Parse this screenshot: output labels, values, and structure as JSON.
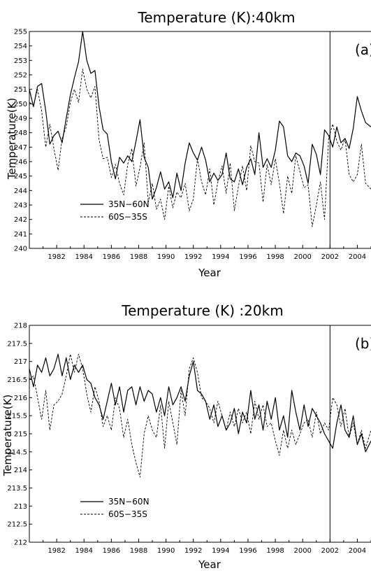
{
  "chart_data": [
    {
      "type": "line",
      "title": "Temperature (K):40km",
      "panel_label": "(a)",
      "xlabel": "Year",
      "ylabel": "Temperature(K)",
      "xlim": [
        1980.0,
        2005.0
      ],
      "ylim": [
        240,
        255
      ],
      "xticks": [
        1982,
        1984,
        1986,
        1988,
        1990,
        1992,
        1994,
        1996,
        1998,
        2000,
        2002,
        2004
      ],
      "yticks": [
        240,
        241,
        242,
        243,
        244,
        245,
        246,
        247,
        248,
        249,
        250,
        251,
        252,
        253,
        254,
        255
      ],
      "vline": 2002,
      "legend_position": "bottom-left",
      "series": [
        {
          "name": "35N−60N",
          "style": "solid",
          "x": [
            1980.0,
            1980.3,
            1980.6,
            1980.9,
            1981.2,
            1981.5,
            1981.8,
            1982.1,
            1982.4,
            1982.7,
            1983.0,
            1983.3,
            1983.6,
            1983.9,
            1984.2,
            1984.5,
            1984.8,
            1985.1,
            1985.4,
            1985.7,
            1986.0,
            1986.3,
            1986.6,
            1986.9,
            1987.2,
            1987.5,
            1987.8,
            1988.1,
            1988.4,
            1988.7,
            1989.0,
            1989.3,
            1989.6,
            1989.9,
            1990.2,
            1990.5,
            1990.8,
            1991.1,
            1991.4,
            1991.7,
            1992.0,
            1992.3,
            1992.6,
            1992.9,
            1993.2,
            1993.5,
            1993.8,
            1994.1,
            1994.4,
            1994.7,
            1995.0,
            1995.3,
            1995.6,
            1995.9,
            1996.2,
            1996.5,
            1996.8,
            1997.1,
            1997.4,
            1997.7,
            1998.0,
            1998.3,
            1998.6,
            1998.9,
            1999.2,
            1999.5,
            1999.8,
            2000.1,
            2000.4,
            2000.7,
            2001.0,
            2001.3,
            2001.6,
            2001.9,
            2002.2,
            2002.5,
            2002.8,
            2003.1,
            2003.4,
            2003.7,
            2004.0,
            2004.3,
            2004.6,
            2005.0
          ],
          "y": [
            251.0,
            249.8,
            251.2,
            251.4,
            249.5,
            247.2,
            247.8,
            248.1,
            247.3,
            249.0,
            250.6,
            251.8,
            252.9,
            255.0,
            253.0,
            252.1,
            252.3,
            249.8,
            248.2,
            247.9,
            246.0,
            244.8,
            246.3,
            245.9,
            246.4,
            246.0,
            247.4,
            248.9,
            246.3,
            245.6,
            243.4,
            244.2,
            245.3,
            244.1,
            244.6,
            243.5,
            245.2,
            244.0,
            245.9,
            247.3,
            246.6,
            246.1,
            247.0,
            246.1,
            244.6,
            245.2,
            244.7,
            245.1,
            246.6,
            244.8,
            244.6,
            245.5,
            244.4,
            245.6,
            246.2,
            245.1,
            248.0,
            245.6,
            246.2,
            245.6,
            246.8,
            248.8,
            248.4,
            246.4,
            246.0,
            246.6,
            246.4,
            245.7,
            244.5,
            247.2,
            246.5,
            245.1,
            248.2,
            247.8,
            247.0,
            248.4,
            247.3,
            247.6,
            246.9,
            248.3,
            250.5,
            249.5,
            248.7,
            248.4
          ]
        },
        {
          "name": "60S−35S",
          "style": "dashed",
          "x": [
            1980.0,
            1980.3,
            1980.6,
            1980.9,
            1981.2,
            1981.5,
            1981.8,
            1982.1,
            1982.4,
            1982.7,
            1983.0,
            1983.3,
            1983.6,
            1983.9,
            1984.2,
            1984.5,
            1984.8,
            1985.1,
            1985.4,
            1985.7,
            1986.0,
            1986.3,
            1986.6,
            1986.9,
            1987.2,
            1987.5,
            1987.8,
            1988.1,
            1988.4,
            1988.7,
            1989.0,
            1989.3,
            1989.6,
            1989.9,
            1990.2,
            1990.5,
            1990.8,
            1991.1,
            1991.4,
            1991.7,
            1992.0,
            1992.3,
            1992.6,
            1992.9,
            1993.2,
            1993.5,
            1993.8,
            1994.1,
            1994.4,
            1994.7,
            1995.0,
            1995.3,
            1995.6,
            1995.9,
            1996.2,
            1996.5,
            1996.8,
            1997.1,
            1997.4,
            1997.7,
            1998.0,
            1998.3,
            1998.6,
            1998.9,
            1999.2,
            1999.5,
            1999.8,
            2000.1,
            2000.4,
            2000.7,
            2001.0,
            2001.3,
            2001.6,
            2001.9,
            2002.2,
            2002.5,
            2002.8,
            2003.1,
            2003.4,
            2003.7,
            2004.0,
            2004.3,
            2004.6,
            2005.0
          ],
          "y": [
            250.1,
            249.9,
            251.0,
            249.5,
            247.0,
            248.6,
            246.9,
            245.4,
            247.6,
            248.4,
            250.1,
            251.0,
            250.1,
            252.4,
            251.0,
            250.4,
            251.2,
            247.5,
            246.2,
            246.3,
            244.9,
            245.8,
            244.5,
            243.7,
            245.8,
            246.9,
            244.3,
            245.6,
            247.3,
            243.2,
            244.5,
            242.7,
            243.4,
            242.0,
            244.3,
            242.8,
            243.9,
            243.5,
            244.5,
            242.6,
            243.4,
            246.2,
            244.6,
            243.7,
            245.5,
            243.0,
            244.6,
            245.7,
            243.8,
            245.9,
            242.6,
            244.3,
            245.7,
            244.0,
            247.1,
            246.0,
            245.9,
            243.2,
            245.8,
            244.4,
            246.2,
            244.5,
            242.4,
            245.0,
            243.8,
            246.4,
            245.3,
            244.2,
            244.4,
            241.5,
            243.0,
            244.6,
            242.0,
            247.6,
            248.6,
            247.4,
            246.8,
            247.6,
            245.1,
            244.6,
            245.1,
            247.2,
            244.5,
            244.1
          ]
        }
      ]
    },
    {
      "type": "line",
      "title": "Temperature (K) :20km",
      "panel_label": "(b)",
      "xlabel": "Year",
      "ylabel": "Temperature(K)",
      "xlim": [
        1980.0,
        2005.0
      ],
      "ylim": [
        212,
        218
      ],
      "xticks": [
        1982,
        1984,
        1986,
        1988,
        1990,
        1992,
        1994,
        1996,
        1998,
        2000,
        2002,
        2004
      ],
      "yticks": [
        212,
        212.5,
        213,
        213.5,
        214,
        214.5,
        215,
        215.5,
        216,
        216.5,
        217,
        217.5,
        218
      ],
      "vline": 2002,
      "legend_position": "bottom-left",
      "series": [
        {
          "name": "35N−60N",
          "style": "solid",
          "x": [
            1980.0,
            1980.3,
            1980.6,
            1980.9,
            1981.2,
            1981.5,
            1981.8,
            1982.1,
            1982.4,
            1982.7,
            1983.0,
            1983.3,
            1983.6,
            1983.9,
            1984.2,
            1984.5,
            1984.8,
            1985.1,
            1985.4,
            1985.7,
            1986.0,
            1986.3,
            1986.6,
            1986.9,
            1987.2,
            1987.5,
            1987.8,
            1988.1,
            1988.4,
            1988.7,
            1989.0,
            1989.3,
            1989.6,
            1989.9,
            1990.2,
            1990.5,
            1990.8,
            1991.1,
            1991.4,
            1991.7,
            1992.0,
            1992.3,
            1992.6,
            1992.9,
            1993.2,
            1993.5,
            1993.8,
            1994.1,
            1994.4,
            1994.7,
            1995.0,
            1995.3,
            1995.6,
            1995.9,
            1996.2,
            1996.5,
            1996.8,
            1997.1,
            1997.4,
            1997.7,
            1998.0,
            1998.3,
            1998.6,
            1998.9,
            1999.2,
            1999.5,
            1999.8,
            2000.1,
            2000.4,
            2000.7,
            2001.0,
            2001.3,
            2001.6,
            2001.9,
            2002.2,
            2002.5,
            2002.8,
            2003.1,
            2003.4,
            2003.7,
            2004.0,
            2004.3,
            2004.6,
            2005.0
          ],
          "y": [
            216.8,
            216.3,
            216.9,
            216.7,
            217.1,
            216.6,
            216.8,
            217.2,
            216.6,
            217.1,
            216.5,
            216.9,
            216.7,
            216.9,
            216.5,
            216.4,
            216.0,
            215.8,
            215.4,
            215.9,
            216.4,
            215.8,
            216.3,
            215.6,
            216.2,
            216.3,
            215.8,
            216.3,
            215.9,
            216.2,
            216.1,
            215.6,
            216.0,
            215.5,
            216.3,
            215.8,
            216.0,
            216.3,
            215.9,
            216.6,
            217.0,
            216.2,
            216.1,
            215.9,
            215.4,
            215.8,
            215.2,
            215.5,
            215.1,
            215.3,
            215.7,
            215.0,
            215.6,
            215.3,
            216.2,
            215.4,
            215.8,
            215.1,
            215.9,
            215.4,
            216.0,
            215.1,
            215.5,
            214.9,
            216.2,
            215.6,
            215.1,
            215.8,
            215.2,
            215.7,
            215.5,
            215.3,
            215.0,
            214.8,
            214.6,
            215.3,
            215.8,
            215.1,
            214.9,
            215.5,
            214.7,
            215.0,
            214.5,
            214.8
          ]
        },
        {
          "name": "60S−35S",
          "style": "dashed",
          "x": [
            1980.0,
            1980.3,
            1980.6,
            1980.9,
            1981.2,
            1981.5,
            1981.8,
            1982.1,
            1982.4,
            1982.7,
            1983.0,
            1983.3,
            1983.6,
            1983.9,
            1984.2,
            1984.5,
            1984.8,
            1985.1,
            1985.4,
            1985.7,
            1986.0,
            1986.3,
            1986.6,
            1986.9,
            1987.2,
            1987.5,
            1987.8,
            1988.1,
            1988.4,
            1988.7,
            1989.0,
            1989.3,
            1989.6,
            1989.9,
            1990.2,
            1990.5,
            1990.8,
            1991.1,
            1991.4,
            1991.7,
            1992.0,
            1992.3,
            1992.6,
            1992.9,
            1993.2,
            1993.5,
            1993.8,
            1994.1,
            1994.4,
            1994.7,
            1995.0,
            1995.3,
            1995.6,
            1995.9,
            1996.2,
            1996.5,
            1996.8,
            1997.1,
            1997.4,
            1997.7,
            1998.0,
            1998.3,
            1998.6,
            1998.9,
            1999.2,
            1999.5,
            1999.8,
            2000.1,
            2000.4,
            2000.7,
            2001.0,
            2001.3,
            2001.6,
            2001.9,
            2002.2,
            2002.5,
            2002.8,
            2003.1,
            2003.4,
            2003.7,
            2004.0,
            2004.3,
            2004.6,
            2005.0
          ],
          "y": [
            216.5,
            216.6,
            216.0,
            215.4,
            216.2,
            215.1,
            215.8,
            215.9,
            216.1,
            216.6,
            217.2,
            216.7,
            217.2,
            216.8,
            216.1,
            215.6,
            216.3,
            215.9,
            215.2,
            215.5,
            215.1,
            216.0,
            215.7,
            214.9,
            215.4,
            214.7,
            214.2,
            213.8,
            215.0,
            215.5,
            215.1,
            214.9,
            215.8,
            214.6,
            215.9,
            215.3,
            214.7,
            216.2,
            215.5,
            216.8,
            217.1,
            216.7,
            216.0,
            215.9,
            215.7,
            215.3,
            215.9,
            215.5,
            215.1,
            215.6,
            215.2,
            215.7,
            215.3,
            215.6,
            215.0,
            215.9,
            215.4,
            215.8,
            215.2,
            215.3,
            214.8,
            214.4,
            215.1,
            214.6,
            215.1,
            214.7,
            215.0,
            215.3,
            215.4,
            214.9,
            215.6,
            215.0,
            215.3,
            215.1,
            216.0,
            215.8,
            215.2,
            215.7,
            214.9,
            215.3,
            214.7,
            215.1,
            214.6,
            215.1
          ]
        }
      ]
    }
  ]
}
